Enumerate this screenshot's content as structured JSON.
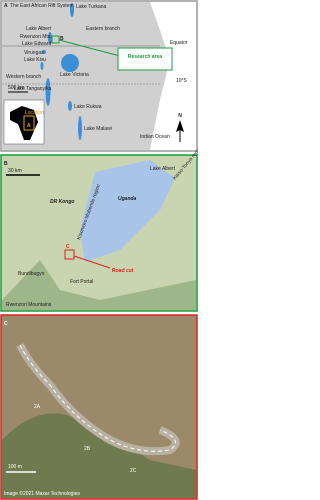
{
  "panel_a": {
    "label": "A",
    "title": "The East African Rift System",
    "places": [
      "Lake Turkana",
      "Lake Albert",
      "Rwenzori Mts.",
      "Lake Edward",
      "Virungas",
      "Lake Kivu",
      "Western branch",
      "Lake Tanganyika",
      "Eastern branch",
      "Lake Victoria",
      "Lake Rukwa",
      "Lake Malawi",
      "Indian Ocean"
    ],
    "equator": "Equator",
    "latitude": "10°S",
    "scale": "500 km",
    "box": "B",
    "callout": "Research area",
    "north": "N",
    "inset": "Location",
    "inset_box": "A"
  },
  "panel_b": {
    "label": "B",
    "scale": "30 km",
    "places": [
      "Lake Albert",
      "DR Kongo",
      "Uganda",
      "Kaiso-Tonya region",
      "Kisomoro Mubende region",
      "Bundibugyo",
      "Fort Portal",
      "Rwenzori Mountains"
    ],
    "box": "C",
    "callout": "Road cut"
  },
  "panel_c": {
    "label": "C",
    "sites": [
      "2A",
      "2B",
      "2C"
    ],
    "scale": "100 m",
    "credit": "Image ©2021 Maxar Technologies"
  }
}
